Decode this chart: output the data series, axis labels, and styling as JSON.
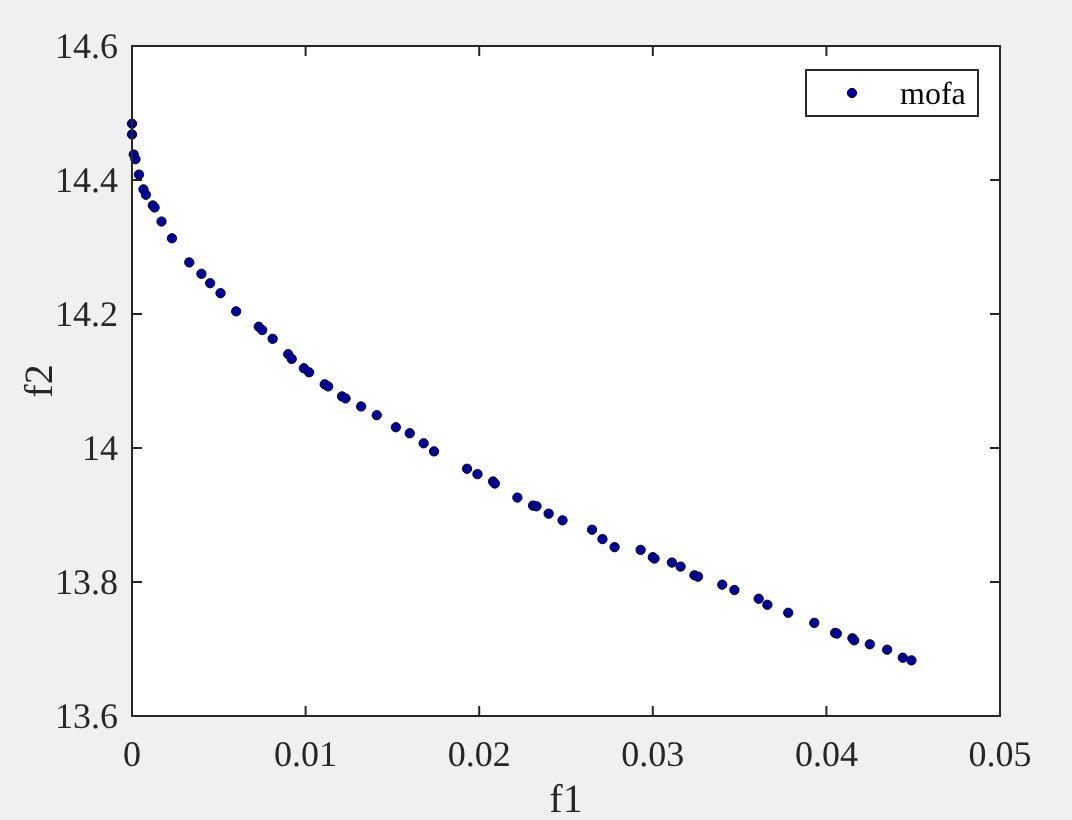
{
  "chart_data": {
    "type": "scatter",
    "xlabel": "f1",
    "ylabel": "f2",
    "xlim": [
      0,
      0.05
    ],
    "ylim": [
      13.6,
      14.6
    ],
    "xticks": [
      0,
      0.01,
      0.02,
      0.03,
      0.04,
      0.05
    ],
    "yticks": [
      13.6,
      13.8,
      14,
      14.2,
      14.4,
      14.6
    ],
    "legend": "top right",
    "marker": "circle",
    "series": [
      {
        "name": "mofa",
        "color": "#000099",
        "x": [
          0,
          0,
          0.0001,
          0.0002,
          0.0004,
          0.00066,
          0.0008,
          0.0012,
          0.0013,
          0.0017,
          0.0023,
          0.0033,
          0.004,
          0.0045,
          0.0051,
          0.006,
          0.0073,
          0.0075,
          0.0081,
          0.009,
          0.0092,
          0.0099,
          0.0102,
          0.0111,
          0.0113,
          0.0121,
          0.0123,
          0.0132,
          0.0141,
          0.0152,
          0.016,
          0.0168,
          0.0174,
          0.0193,
          0.0199,
          0.0208,
          0.0209,
          0.0222,
          0.0231,
          0.0233,
          0.024,
          0.0248,
          0.0265,
          0.0271,
          0.0278,
          0.0293,
          0.03,
          0.0301,
          0.0311,
          0.0316,
          0.0324,
          0.0326,
          0.034,
          0.0347,
          0.0361,
          0.0366,
          0.0378,
          0.0393,
          0.0405,
          0.0406,
          0.0415,
          0.0416,
          0.0425,
          0.0435,
          0.0444,
          0.0449
        ],
        "values": [
          14.484,
          14.468,
          14.438,
          14.431,
          14.408,
          14.386,
          14.378,
          14.362,
          14.359,
          14.338,
          14.313,
          14.277,
          14.26,
          14.246,
          14.231,
          14.204,
          14.181,
          14.176,
          14.163,
          14.14,
          14.133,
          14.119,
          14.113,
          14.095,
          14.092,
          14.077,
          14.074,
          14.062,
          14.049,
          14.031,
          14.022,
          14.007,
          13.995,
          13.969,
          13.961,
          13.95,
          13.947,
          13.926,
          13.914,
          13.913,
          13.902,
          13.892,
          13.878,
          13.864,
          13.852,
          13.848,
          13.837,
          13.835,
          13.829,
          13.823,
          13.81,
          13.808,
          13.796,
          13.788,
          13.775,
          13.766,
          13.754,
          13.739,
          13.724,
          13.723,
          13.716,
          13.713,
          13.707,
          13.699,
          13.687,
          13.683
        ]
      }
    ]
  }
}
